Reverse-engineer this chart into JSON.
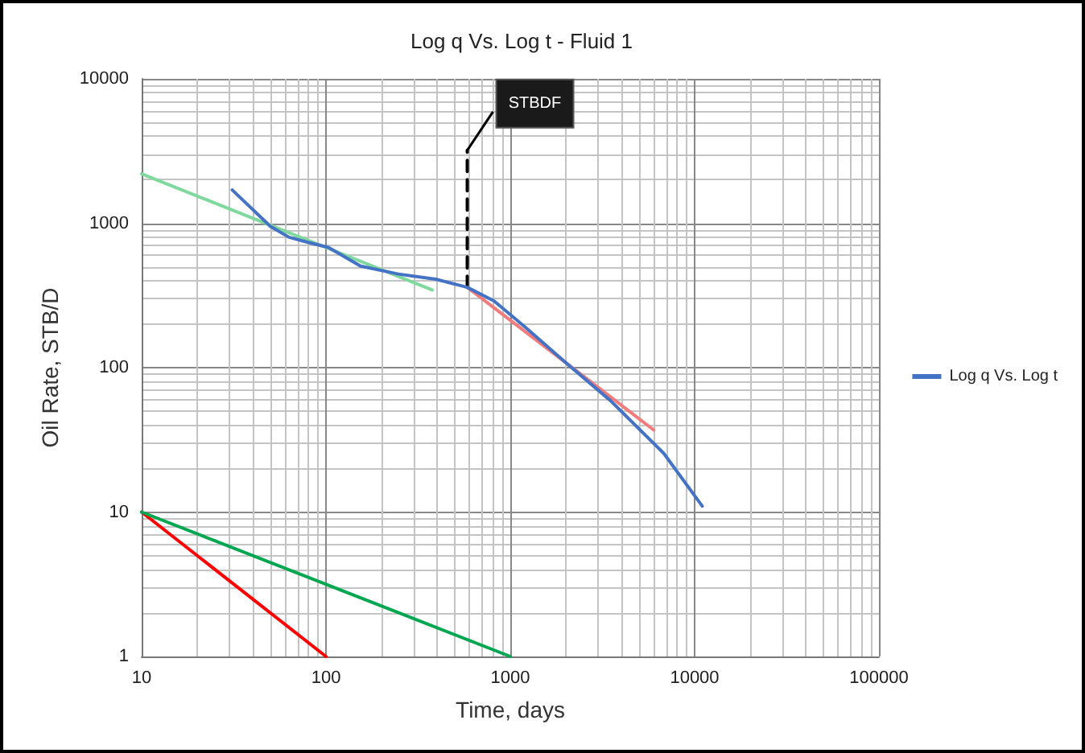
{
  "chart_data": {
    "type": "line",
    "title": "Log q Vs. Log t - Fluid 1",
    "xlabel": "Time, days",
    "ylabel": "Oil Rate, STB/D",
    "series": [
      {
        "name": "Log q Vs. Log t",
        "color": "#4472c4",
        "x": [
          31,
          50,
          63,
          79,
          103,
          154,
          247,
          393,
          584,
          815,
          1210,
          2040,
          3500,
          6800,
          11000
        ],
        "values": [
          1700,
          950,
          800,
          740,
          680,
          505,
          445,
          410,
          360,
          290,
          190,
          106,
          59,
          25.5,
          11
        ]
      },
      {
        "color": "#7fd89c",
        "x": [
          10,
          377
        ],
        "values": [
          2200,
          345
        ]
      },
      {
        "color": "#f07c7c",
        "x": [
          584,
          6000
        ],
        "values": [
          360,
          37
        ]
      },
      {
        "color": "#ff0000",
        "x": [
          10,
          100
        ],
        "values": [
          10,
          1
        ]
      },
      {
        "color": "#00a650",
        "x": [
          10,
          1000
        ],
        "values": [
          10,
          1
        ]
      },
      {
        "color": "#000000",
        "x": [
          584,
          584
        ],
        "values": [
          360,
          3200
        ],
        "line_style": "dashed"
      }
    ],
    "annotations": [
      {
        "text": "STBDF",
        "x": 584,
        "y": 3200
      }
    ],
    "log": "xy",
    "xlim": [
      10,
      100000
    ],
    "ylim": [
      1,
      10000
    ],
    "xticks": [
      10,
      100,
      1000,
      10000,
      100000
    ],
    "yticks": [
      1,
      10,
      100,
      1000,
      10000
    ],
    "grid": true,
    "legend": "right",
    "marker": "none",
    "line_style": "solid"
  }
}
